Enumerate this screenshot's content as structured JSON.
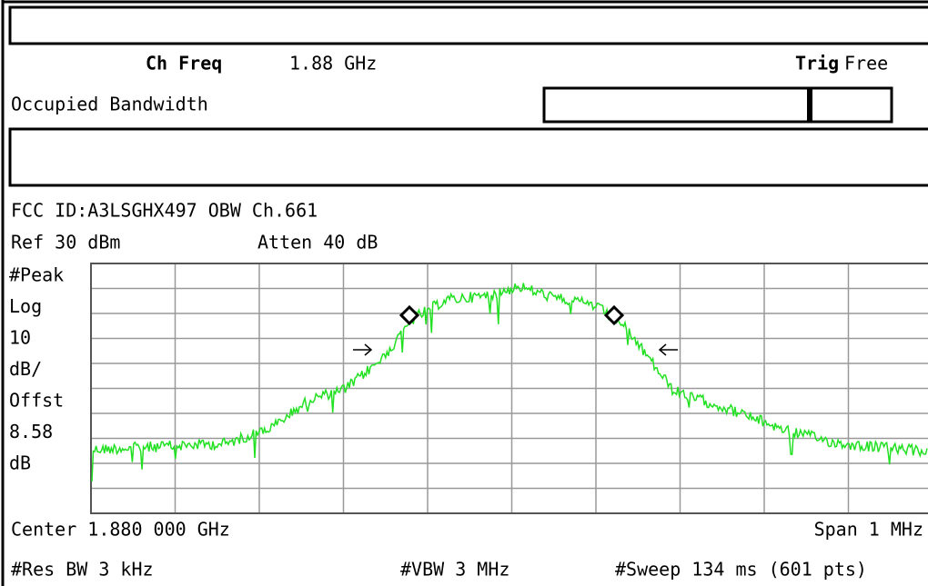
{
  "header": {
    "ch_freq_label": "Ch Freq",
    "ch_freq_value": "1.88 GHz",
    "trig_label": "Trig",
    "trig_value": "Free",
    "measurement": "Occupied Bandwidth"
  },
  "screen": {
    "title": "FCC ID:A3LSGHX497 OBW Ch.661",
    "ref": "Ref 30 dBm",
    "atten": "Atten 40 dB",
    "scale_labels": [
      "#Peak",
      "Log",
      "10",
      "dB/",
      "Offst",
      "8.58",
      "dB"
    ],
    "center": "Center 1.880 000 GHz",
    "span": "Span 1 MHz",
    "res_bw": "#Res BW 3 kHz",
    "vbw": "#VBW 3 MHz",
    "sweep": "#Sweep 134 ms (601 pts)"
  }
}
